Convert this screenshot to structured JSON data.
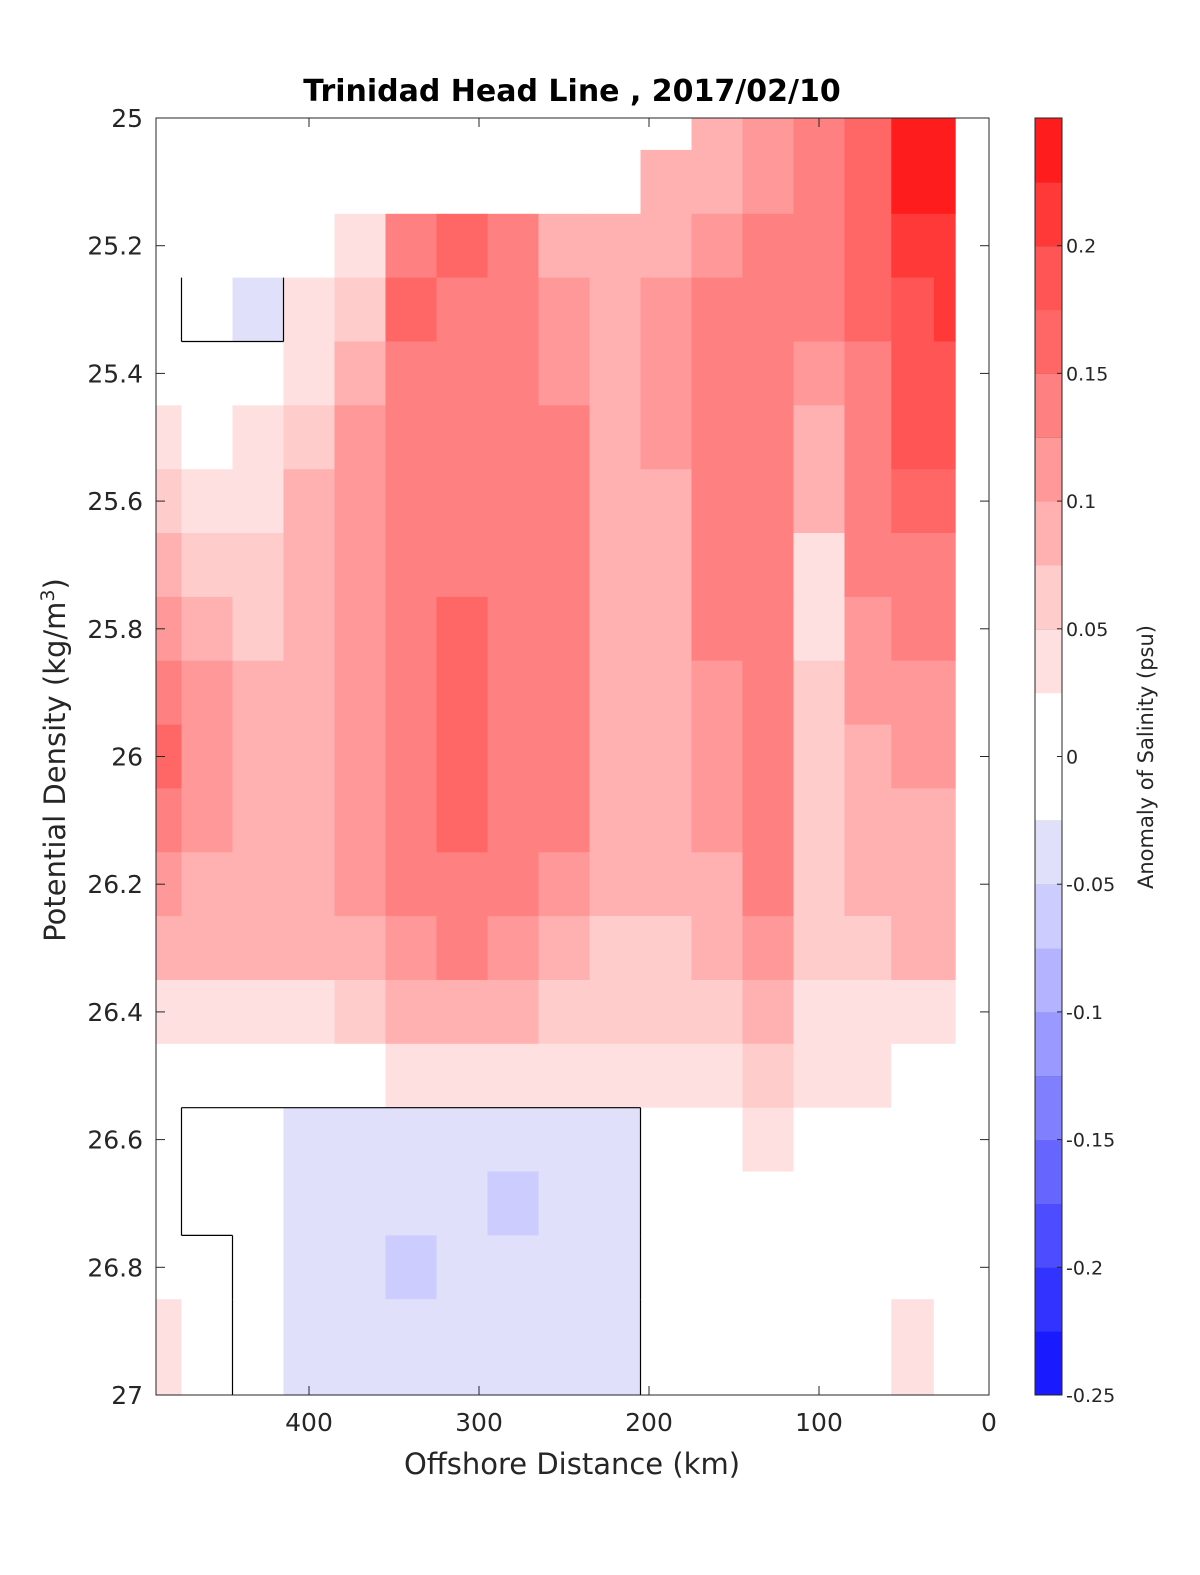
{
  "chart_data": {
    "type": "heatmap",
    "title": "Trinidad Head Line , 2017/02/10",
    "xlabel": "Offshore Distance (km)",
    "ylabel_prefix": "Potential Density (kg/m",
    "ylabel_exponent": "3",
    "ylabel_suffix": ")",
    "xlim": [
      490,
      0
    ],
    "x_reversed": true,
    "ylim": [
      25,
      27
    ],
    "y_reversed": true,
    "x_ticks": [
      400,
      300,
      200,
      100,
      0
    ],
    "x_tick_labels": [
      "400",
      "300",
      "200",
      "100",
      "0"
    ],
    "y_ticks": [
      25,
      25.2,
      25.4,
      25.6,
      25.8,
      26,
      26.2,
      26.4,
      26.6,
      26.8,
      27
    ],
    "y_tick_labels": [
      "25",
      "25.2",
      "25.4",
      "25.6",
      "25.8",
      "26",
      "26.2",
      "26.4",
      "26.6",
      "26.8",
      "27"
    ],
    "grid": false,
    "colorbar": {
      "label": "Anomaly of Salinity (psu)",
      "range": [
        -0.25,
        0.25
      ],
      "ticks": [
        -0.25,
        -0.2,
        -0.15,
        -0.1,
        -0.05,
        0,
        0.05,
        0.1,
        0.15,
        0.2
      ],
      "tick_labels": [
        "-0.25",
        "-0.2",
        "-0.15",
        "-0.1",
        "-0.05",
        "0",
        "0.05",
        "0.1",
        "0.15",
        "0.2"
      ],
      "levels": [
        -0.25,
        -0.225,
        -0.2,
        -0.175,
        -0.15,
        -0.125,
        -0.1,
        -0.075,
        -0.05,
        -0.025,
        0.025,
        0.05,
        0.075,
        0.1,
        0.125,
        0.15,
        0.175,
        0.2,
        0.225,
        0.25
      ],
      "colors": [
        "#0000ff",
        "#1a1aff",
        "#3333ff",
        "#4d4dff",
        "#6666ff",
        "#8080ff",
        "#9999ff",
        "#b3b3ff",
        "#ccccff",
        "#e0e0fa",
        "#ffffff",
        "#ffe0e0",
        "#ffcccc",
        "#ffb0b0",
        "#ff9999",
        "#ff8080",
        "#ff6666",
        "#ff5555",
        "#ff3838",
        "#ff1c1c",
        "#ff0000"
      ]
    },
    "x_columns": [
      490,
      460,
      430,
      400,
      370,
      340,
      310,
      280,
      250,
      220,
      190,
      160,
      130,
      100,
      70,
      45,
      20
    ],
    "y_rows": [
      25,
      25.1,
      25.2,
      25.3,
      25.4,
      25.5,
      25.6,
      25.7,
      25.8,
      25.9,
      26,
      26.1,
      26.2,
      26.3,
      26.4,
      26.5,
      26.6,
      26.7,
      26.8,
      26.9
    ],
    "values": [
      [
        null,
        null,
        null,
        null,
        null,
        null,
        null,
        null,
        null,
        null,
        null,
        0.09,
        0.11,
        0.14,
        0.17,
        0.23,
        0.24
      ],
      [
        null,
        null,
        null,
        null,
        null,
        null,
        null,
        null,
        null,
        null,
        0.08,
        0.1,
        0.12,
        0.14,
        0.17,
        0.23,
        0.24
      ],
      [
        null,
        null,
        null,
        null,
        0.04,
        0.14,
        0.17,
        0.14,
        0.1,
        0.09,
        0.1,
        0.12,
        0.13,
        0.15,
        0.17,
        0.22,
        0.22
      ],
      [
        0.01,
        -0.01,
        -0.03,
        0.03,
        0.07,
        0.17,
        0.15,
        0.13,
        0.11,
        0.1,
        0.11,
        0.13,
        0.14,
        0.14,
        0.16,
        0.2,
        0.21
      ],
      [
        0.02,
        0.0,
        0.02,
        0.05,
        0.09,
        0.13,
        0.13,
        0.13,
        0.12,
        0.1,
        0.11,
        0.14,
        0.14,
        0.12,
        0.15,
        0.19,
        0.19
      ],
      [
        0.04,
        0.02,
        0.04,
        0.07,
        0.11,
        0.14,
        0.14,
        0.14,
        0.14,
        0.1,
        0.11,
        0.14,
        0.15,
        0.1,
        0.15,
        0.18,
        0.18
      ],
      [
        0.06,
        0.04,
        0.05,
        0.09,
        0.12,
        0.14,
        0.15,
        0.15,
        0.15,
        0.1,
        0.1,
        0.14,
        0.15,
        0.08,
        0.14,
        0.17,
        0.17
      ],
      [
        0.08,
        0.06,
        0.06,
        0.1,
        0.12,
        0.14,
        0.15,
        0.15,
        0.15,
        0.1,
        0.1,
        0.13,
        0.15,
        0.05,
        0.13,
        0.15,
        0.15
      ],
      [
        0.12,
        0.09,
        0.07,
        0.1,
        0.12,
        0.15,
        0.16,
        0.15,
        0.15,
        0.1,
        0.09,
        0.13,
        0.15,
        0.05,
        0.12,
        0.13,
        0.13
      ],
      [
        0.14,
        0.11,
        0.08,
        0.1,
        0.12,
        0.15,
        0.16,
        0.15,
        0.15,
        0.1,
        0.09,
        0.12,
        0.15,
        0.06,
        0.11,
        0.12,
        0.12
      ],
      [
        0.16,
        0.12,
        0.09,
        0.1,
        0.12,
        0.15,
        0.16,
        0.15,
        0.14,
        0.1,
        0.09,
        0.12,
        0.15,
        0.07,
        0.1,
        0.11,
        0.11
      ],
      [
        0.14,
        0.11,
        0.09,
        0.1,
        0.12,
        0.15,
        0.16,
        0.15,
        0.13,
        0.09,
        0.08,
        0.11,
        0.15,
        0.07,
        0.09,
        0.1,
        0.1
      ],
      [
        0.12,
        0.1,
        0.09,
        0.09,
        0.11,
        0.14,
        0.15,
        0.14,
        0.12,
        0.08,
        0.08,
        0.1,
        0.14,
        0.07,
        0.08,
        0.09,
        0.09
      ],
      [
        0.09,
        0.08,
        0.08,
        0.08,
        0.09,
        0.12,
        0.13,
        0.12,
        0.1,
        0.07,
        0.07,
        0.09,
        0.12,
        0.06,
        0.07,
        0.08,
        0.08
      ],
      [
        0.05,
        0.05,
        0.05,
        0.05,
        0.06,
        0.08,
        0.08,
        0.08,
        0.07,
        0.06,
        0.06,
        0.07,
        0.09,
        0.05,
        0.05,
        0.05,
        0.05
      ],
      [
        0.02,
        0.01,
        0.01,
        0.01,
        0.02,
        0.03,
        0.03,
        0.04,
        0.04,
        0.04,
        0.04,
        0.05,
        0.06,
        0.03,
        0.03,
        0.02,
        0.01
      ],
      [
        0.0,
        -0.005,
        -0.015,
        -0.03,
        -0.03,
        -0.03,
        -0.035,
        -0.035,
        -0.035,
        -0.03,
        0.0,
        0.01,
        0.03,
        0.02,
        0.01,
        0.005,
        0.0
      ],
      [
        0.0,
        -0.005,
        -0.015,
        -0.03,
        -0.035,
        -0.04,
        -0.04,
        -0.055,
        -0.045,
        -0.03,
        0.0,
        0.0,
        0.01,
        0.015,
        0.0,
        0.0,
        0.0
      ],
      [
        0.01,
        0.0,
        -0.015,
        -0.03,
        -0.04,
        -0.055,
        -0.04,
        -0.04,
        -0.035,
        -0.03,
        0.0,
        0.0,
        0.0,
        0.0,
        0.0,
        0.01,
        0.0
      ],
      [
        0.03,
        0.0,
        -0.015,
        -0.03,
        -0.035,
        -0.035,
        -0.035,
        -0.035,
        -0.035,
        -0.03,
        0.0,
        0.0,
        0.0,
        0.0,
        0.0,
        0.03,
        0.0
      ]
    ]
  }
}
